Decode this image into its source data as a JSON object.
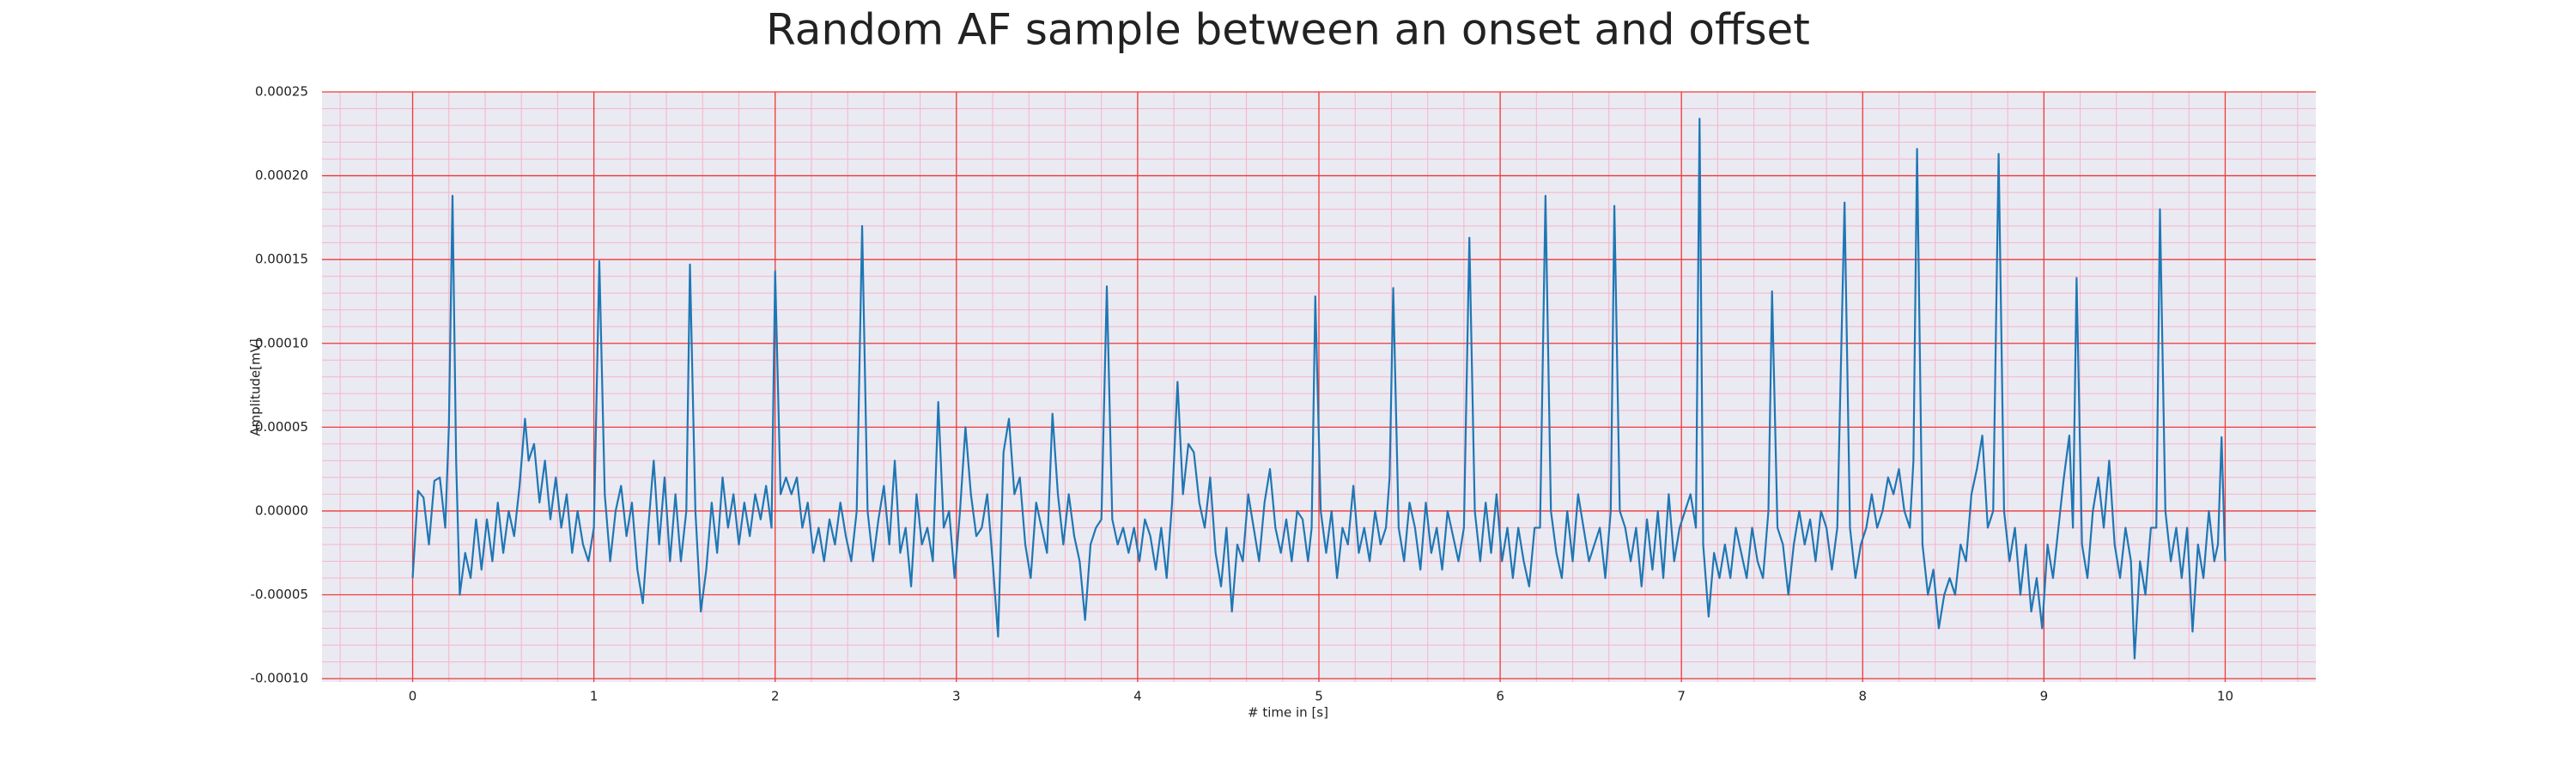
{
  "chart_data": {
    "type": "line",
    "title": "Random AF sample between an onset and offset",
    "xlabel": "# time in [s]",
    "ylabel": "Amplitude[mV]",
    "color": "#1f77b4",
    "background": "#eaeaf2",
    "grid": true,
    "grid_color": "#f03a3a",
    "minor_grid": true,
    "minor_grid_color": "#f5b5c8",
    "xlim": [
      -0.5,
      10.5
    ],
    "xticks": [
      0,
      1,
      2,
      3,
      4,
      5,
      6,
      7,
      8,
      9,
      10
    ],
    "ylim": [
      -0.000102,
      0.00025
    ],
    "yticks": [
      {
        "value": -0.0001,
        "label": "-0.00010"
      },
      {
        "value": -5e-05,
        "label": "-0.00005"
      },
      {
        "value": 0,
        "label": "0.00000"
      },
      {
        "value": 5e-05,
        "label": "0.00005"
      },
      {
        "value": 0.0001,
        "label": "0.00010"
      },
      {
        "value": 0.00015,
        "label": "0.00015"
      },
      {
        "value": 0.0002,
        "label": "0.00020"
      },
      {
        "value": 0.00025,
        "label": "0.00025"
      }
    ],
    "x": [
      0,
      0.03,
      0.06,
      0.09,
      0.12,
      0.15,
      0.18,
      0.2,
      0.22,
      0.24,
      0.26,
      0.29,
      0.32,
      0.35,
      0.38,
      0.41,
      0.44,
      0.47,
      0.5,
      0.53,
      0.56,
      0.59,
      0.62,
      0.64,
      0.67,
      0.7,
      0.73,
      0.76,
      0.79,
      0.82,
      0.85,
      0.88,
      0.91,
      0.94,
      0.97,
      1.0,
      1.03,
      1.06,
      1.09,
      1.12,
      1.15,
      1.18,
      1.21,
      1.24,
      1.27,
      1.3,
      1.33,
      1.36,
      1.39,
      1.42,
      1.45,
      1.48,
      1.51,
      1.53,
      1.56,
      1.59,
      1.62,
      1.65,
      1.68,
      1.71,
      1.74,
      1.77,
      1.8,
      1.83,
      1.86,
      1.89,
      1.92,
      1.95,
      1.98,
      2.0,
      2.03,
      2.06,
      2.09,
      2.12,
      2.15,
      2.18,
      2.21,
      2.24,
      2.27,
      2.3,
      2.33,
      2.36,
      2.39,
      2.42,
      2.45,
      2.48,
      2.51,
      2.54,
      2.57,
      2.6,
      2.63,
      2.66,
      2.69,
      2.72,
      2.75,
      2.78,
      2.81,
      2.84,
      2.87,
      2.9,
      2.93,
      2.96,
      2.99,
      3.02,
      3.05,
      3.08,
      3.11,
      3.14,
      3.17,
      3.2,
      3.23,
      3.26,
      3.29,
      3.32,
      3.35,
      3.38,
      3.41,
      3.44,
      3.47,
      3.5,
      3.53,
      3.56,
      3.59,
      3.62,
      3.65,
      3.68,
      3.71,
      3.74,
      3.77,
      3.8,
      3.83,
      3.86,
      3.89,
      3.92,
      3.95,
      3.98,
      4.01,
      4.04,
      4.07,
      4.1,
      4.13,
      4.16,
      4.19,
      4.22,
      4.25,
      4.28,
      4.31,
      4.34,
      4.37,
      4.4,
      4.43,
      4.46,
      4.49,
      4.52,
      4.55,
      4.58,
      4.61,
      4.64,
      4.67,
      4.7,
      4.73,
      4.76,
      4.79,
      4.82,
      4.85,
      4.88,
      4.91,
      4.94,
      4.96,
      4.98,
      5.01,
      5.04,
      5.07,
      5.1,
      5.13,
      5.16,
      5.19,
      5.22,
      5.25,
      5.28,
      5.31,
      5.34,
      5.37,
      5.39,
      5.41,
      5.44,
      5.47,
      5.5,
      5.53,
      5.56,
      5.59,
      5.62,
      5.65,
      5.68,
      5.71,
      5.74,
      5.77,
      5.8,
      5.83,
      5.86,
      5.89,
      5.92,
      5.95,
      5.98,
      6.01,
      6.04,
      6.07,
      6.1,
      6.13,
      6.16,
      6.19,
      6.22,
      6.25,
      6.28,
      6.31,
      6.34,
      6.37,
      6.4,
      6.43,
      6.46,
      6.49,
      6.52,
      6.55,
      6.58,
      6.61,
      6.63,
      6.66,
      6.69,
      6.72,
      6.75,
      6.78,
      6.81,
      6.84,
      6.87,
      6.9,
      6.93,
      6.96,
      6.99,
      7.02,
      7.05,
      7.08,
      7.1,
      7.12,
      7.15,
      7.18,
      7.21,
      7.24,
      7.27,
      7.3,
      7.33,
      7.36,
      7.39,
      7.42,
      7.45,
      7.48,
      7.5,
      7.53,
      7.56,
      7.59,
      7.62,
      7.65,
      7.68,
      7.71,
      7.74,
      7.77,
      7.8,
      7.83,
      7.86,
      7.9,
      7.93,
      7.96,
      7.99,
      8.02,
      8.05,
      8.08,
      8.11,
      8.14,
      8.17,
      8.2,
      8.23,
      8.26,
      8.28,
      8.3,
      8.33,
      8.36,
      8.39,
      8.42,
      8.45,
      8.48,
      8.51,
      8.54,
      8.57,
      8.6,
      8.63,
      8.66,
      8.69,
      8.72,
      8.75,
      8.78,
      8.81,
      8.84,
      8.87,
      8.9,
      8.93,
      8.96,
      8.99,
      9.02,
      9.05,
      9.08,
      9.11,
      9.14,
      9.16,
      9.18,
      9.21,
      9.24,
      9.27,
      9.3,
      9.33,
      9.36,
      9.39,
      9.42,
      9.45,
      9.48,
      9.5,
      9.53,
      9.56,
      9.59,
      9.62,
      9.64,
      9.67,
      9.7,
      9.73,
      9.76,
      9.79,
      9.82,
      9.85,
      9.88,
      9.91,
      9.94,
      9.96,
      9.98,
      10.0
    ],
    "values": [
      -4e-05,
      1.2e-05,
      8e-06,
      -2e-05,
      1.8e-05,
      2e-05,
      -1e-05,
      5e-05,
      0.000188,
      3e-05,
      -5e-05,
      -2.5e-05,
      -4e-05,
      -5e-06,
      -3.5e-05,
      -5e-06,
      -3e-05,
      5e-06,
      -2.5e-05,
      0,
      -1.5e-05,
      1.5e-05,
      5.5e-05,
      3e-05,
      4e-05,
      5e-06,
      3e-05,
      -5e-06,
      2e-05,
      -1e-05,
      1e-05,
      -2.5e-05,
      0,
      -2e-05,
      -3e-05,
      -1e-05,
      0.000149,
      1e-05,
      -3e-05,
      0,
      1.5e-05,
      -1.5e-05,
      5e-06,
      -3.5e-05,
      -5.5e-05,
      -1e-05,
      3e-05,
      -2e-05,
      2e-05,
      -3e-05,
      1e-05,
      -3e-05,
      0,
      0.000147,
      0,
      -6e-05,
      -3.5e-05,
      5e-06,
      -2.5e-05,
      2e-05,
      -1e-05,
      1e-05,
      -2e-05,
      5e-06,
      -1.5e-05,
      1e-05,
      -5e-06,
      1.5e-05,
      -1e-05,
      0.000143,
      1e-05,
      2e-05,
      1e-05,
      2e-05,
      -1e-05,
      5e-06,
      -2.5e-05,
      -1e-05,
      -3e-05,
      -5e-06,
      -2e-05,
      5e-06,
      -1.5e-05,
      -3e-05,
      0,
      0.00017,
      0,
      -3e-05,
      -5e-06,
      1.5e-05,
      -2e-05,
      3e-05,
      -2.5e-05,
      -1e-05,
      -4.5e-05,
      1e-05,
      -2e-05,
      -1e-05,
      -3e-05,
      6.5e-05,
      -1e-05,
      0,
      -4e-05,
      0,
      5e-05,
      1e-05,
      -1.5e-05,
      -1e-05,
      1e-05,
      -3e-05,
      -7.5e-05,
      3.5e-05,
      5.5e-05,
      1e-05,
      2e-05,
      -2e-05,
      -4e-05,
      5e-06,
      -1e-05,
      -2.5e-05,
      5.8e-05,
      1e-05,
      -2e-05,
      1e-05,
      -1.5e-05,
      -3e-05,
      -6.5e-05,
      -2e-05,
      -1e-05,
      -5e-06,
      0.000134,
      -5e-06,
      -2e-05,
      -1e-05,
      -2.5e-05,
      -1e-05,
      -3e-05,
      -5e-06,
      -1.5e-05,
      -3.5e-05,
      -1e-05,
      -4e-05,
      5e-06,
      7.7e-05,
      1e-05,
      4e-05,
      3.5e-05,
      5e-06,
      -1e-05,
      2e-05,
      -2.5e-05,
      -4.5e-05,
      -1e-05,
      -6e-05,
      -2e-05,
      -3e-05,
      1e-05,
      -1e-05,
      -3e-05,
      5e-06,
      2.5e-05,
      -1e-05,
      -2.5e-05,
      -5e-06,
      -3e-05,
      0,
      -5e-06,
      -3e-05,
      -1e-05,
      0.000128,
      0,
      -2.5e-05,
      0,
      -4e-05,
      -1e-05,
      -2e-05,
      1.5e-05,
      -2.5e-05,
      -1e-05,
      -3e-05,
      0,
      -2e-05,
      -1e-05,
      2e-05,
      0.000133,
      -1e-05,
      -3e-05,
      5e-06,
      -1e-05,
      -3.5e-05,
      5e-06,
      -2.5e-05,
      -1e-05,
      -3.5e-05,
      0,
      -1.5e-05,
      -3e-05,
      -1e-05,
      0.000163,
      0,
      -3e-05,
      5e-06,
      -2.5e-05,
      1e-05,
      -3e-05,
      -1e-05,
      -4e-05,
      -1e-05,
      -3e-05,
      -4.5e-05,
      -1e-05,
      -1e-05,
      0.000188,
      0,
      -2.5e-05,
      -4e-05,
      0,
      -3e-05,
      1e-05,
      -1e-05,
      -3e-05,
      -2e-05,
      -1e-05,
      -4e-05,
      0,
      0.000182,
      0,
      -1e-05,
      -3e-05,
      -1e-05,
      -4.5e-05,
      -5e-06,
      -3.5e-05,
      0,
      -4e-05,
      1e-05,
      -3e-05,
      -1e-05,
      0,
      1e-05,
      -1e-05,
      0.000234,
      -2e-05,
      -6.3e-05,
      -2.5e-05,
      -4e-05,
      -2e-05,
      -4e-05,
      -1e-05,
      -2.5e-05,
      -4e-05,
      -1e-05,
      -3e-05,
      -4e-05,
      0,
      0.000131,
      -1e-05,
      -2e-05,
      -5e-05,
      -2e-05,
      0,
      -2e-05,
      -5e-06,
      -3e-05,
      0,
      -1e-05,
      -3.5e-05,
      -1e-05,
      0.000184,
      -1e-05,
      -4e-05,
      -2e-05,
      -1e-05,
      1e-05,
      -1e-05,
      0,
      2e-05,
      1e-05,
      2.5e-05,
      0,
      -1e-05,
      3e-05,
      0.000216,
      -2e-05,
      -5e-05,
      -3.5e-05,
      -7e-05,
      -5e-05,
      -4e-05,
      -5e-05,
      -2e-05,
      -3e-05,
      1e-05,
      2.5e-05,
      4.5e-05,
      -1e-05,
      0,
      0.000213,
      0,
      -3e-05,
      -1e-05,
      -5e-05,
      -2e-05,
      -6e-05,
      -4e-05,
      -7e-05,
      -2e-05,
      -4e-05,
      -1e-05,
      2e-05,
      4.5e-05,
      -1e-05,
      0.000139,
      -2e-05,
      -4e-05,
      0,
      2e-05,
      -1e-05,
      3e-05,
      -2e-05,
      -4e-05,
      -1e-05,
      -3e-05,
      -8.8e-05,
      -3e-05,
      -5e-05,
      -1e-05,
      -1e-05,
      0.00018,
      0,
      -3e-05,
      -1e-05,
      -4e-05,
      -1e-05,
      -7.2e-05,
      -2e-05,
      -4e-05,
      0,
      -3e-05,
      -2e-05,
      4.4e-05,
      -3e-05
    ]
  }
}
